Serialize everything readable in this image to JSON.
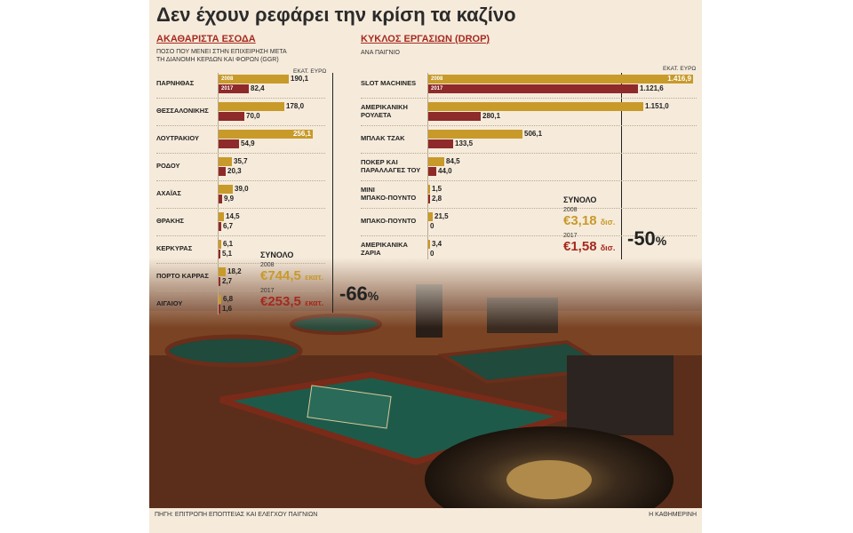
{
  "title": "Δεν έχουν ρεφάρει την κρίση τα καζίνο",
  "colors": {
    "y2008": "#c89a2a",
    "y2017": "#8e2a2a",
    "accent": "#a52a1f"
  },
  "left": {
    "heading": "ΑΚΑΘΑΡΙΣΤΑ ΕΣΟΔΑ",
    "subtitle_line1": "ΠΟΣΟ ΠΟΥ ΜΕΝΕΙ ΣΤΗΝ ΕΠΙΧΕΙΡΗΣΗ ΜΕΤΑ",
    "subtitle_line2": "ΤΗ ΔΙΑΝΟΜΗ ΚΕΡΔΩΝ ΚΑΙ ΦΟΡΩΝ (GGR)",
    "unit": "ΕΚΑΤ. ΕΥΡΩ",
    "year_a": "2008",
    "year_b": "2017",
    "total_label": "ΣΥΝΟΛΟ",
    "total_2008_year": "2008",
    "total_2008_value": "€744,5",
    "total_2008_unit": "εκατ.",
    "total_2017_year": "2017",
    "total_2017_value": "€253,5",
    "total_2017_unit": "εκατ.",
    "change": "-66",
    "change_unit": "%"
  },
  "right": {
    "heading": "ΚΥΚΛΟΣ ΕΡΓΑΣΙΩΝ (DROP)",
    "subtitle": "ΑΝΑ ΠΑΙΓΝΙΟ",
    "unit": "ΕΚΑΤ. ΕΥΡΩ",
    "year_a": "2008",
    "year_b": "2017",
    "total_label": "ΣΥΝΟΛΟ",
    "total_2008_year": "2008",
    "total_2008_value": "€3,18",
    "total_2008_unit": "δισ.",
    "total_2017_year": "2017",
    "total_2017_value": "€1,58",
    "total_2017_unit": "δισ.",
    "change": "-50",
    "change_unit": "%"
  },
  "footer": {
    "source": "ΠΗΓΗ: ΕΠΙΤΡΟΠΗ ΕΠΟΠΤΕΙΑΣ ΚΑΙ ΕΛΕΓΧΟΥ ΠΑΙΓΝΙΩΝ",
    "brand": "Η ΚΑΘΗΜΕΡΙΝΗ"
  },
  "chart_data": [
    {
      "type": "bar",
      "title": "ΑΚΑΘΑΡΙΣΤΑ ΕΣΟΔΑ",
      "orientation": "horizontal",
      "unit": "ΕΚΑΤ. ΕΥΡΩ",
      "categories": [
        "ΠΑΡΝΗΘΑΣ",
        "ΘΕΣΣΑΛΟΝΙΚΗΣ",
        "ΛΟΥΤΡΑΚΙΟΥ",
        "ΡΟΔΟΥ",
        "ΑΧΑΪΑΣ",
        "ΘΡΑΚΗΣ",
        "ΚΕΡΚΥΡΑΣ",
        "ΠΟΡΤΟ ΚΑΡΡΑΣ",
        "ΑΙΓΑΙΟΥ"
      ],
      "series": [
        {
          "name": "2008",
          "values": [
            190.1,
            178.0,
            256.1,
            35.7,
            39.0,
            14.5,
            6.1,
            18.2,
            6.8
          ],
          "labels": [
            "190,1",
            "178,0",
            "256,1",
            "35,7",
            "39,0",
            "14,5",
            "6,1",
            "18,2",
            "6,8"
          ]
        },
        {
          "name": "2017",
          "values": [
            82.4,
            70.0,
            54.9,
            20.3,
            9.9,
            6.7,
            5.1,
            2.7,
            1.6
          ],
          "labels": [
            "82,4",
            "70,0",
            "54,9",
            "20,3",
            "9,9",
            "6,7",
            "5,1",
            "2,7",
            "1,6"
          ]
        }
      ],
      "xlim": [
        0,
        256.1
      ]
    },
    {
      "type": "bar",
      "title": "ΚΥΚΛΟΣ ΕΡΓΑΣΙΩΝ (DROP)",
      "orientation": "horizontal",
      "unit": "ΕΚΑΤ. ΕΥΡΩ",
      "categories": [
        "SLOT MACHINES",
        "ΑΜΕΡΙΚΑΝΙΚΗ\nΡΟΥΛΕΤΑ",
        "ΜΠΛΑΚ ΤΖΑΚ",
        "ΠΟΚΕΡ ΚΑΙ\nΠΑΡΑΛΛΑΓΕΣ ΤΟΥ",
        "ΜΙΝΙ\nΜΠΑΚΟ-ΠΟΥΝΤΟ",
        "ΜΠΑΚΟ-ΠΟΥΝΤΟ",
        "ΑΜΕΡΙΚΑΝΙΚΑ\nΖΑΡΙΑ"
      ],
      "series": [
        {
          "name": "2008",
          "values": [
            1416.9,
            1151.0,
            506.1,
            84.5,
            1.5,
            21.5,
            3.4
          ],
          "labels": [
            "1.416,9",
            "1.151,0",
            "506,1",
            "84,5",
            "1,5",
            "21,5",
            "3,4"
          ]
        },
        {
          "name": "2017",
          "values": [
            1121.6,
            280.1,
            133.5,
            44.0,
            2.8,
            0,
            0
          ],
          "labels": [
            "1.121,6",
            "280,1",
            "133,5",
            "44,0",
            "2,8",
            "0",
            "0"
          ]
        }
      ],
      "xlim": [
        0,
        1416.9
      ]
    }
  ]
}
